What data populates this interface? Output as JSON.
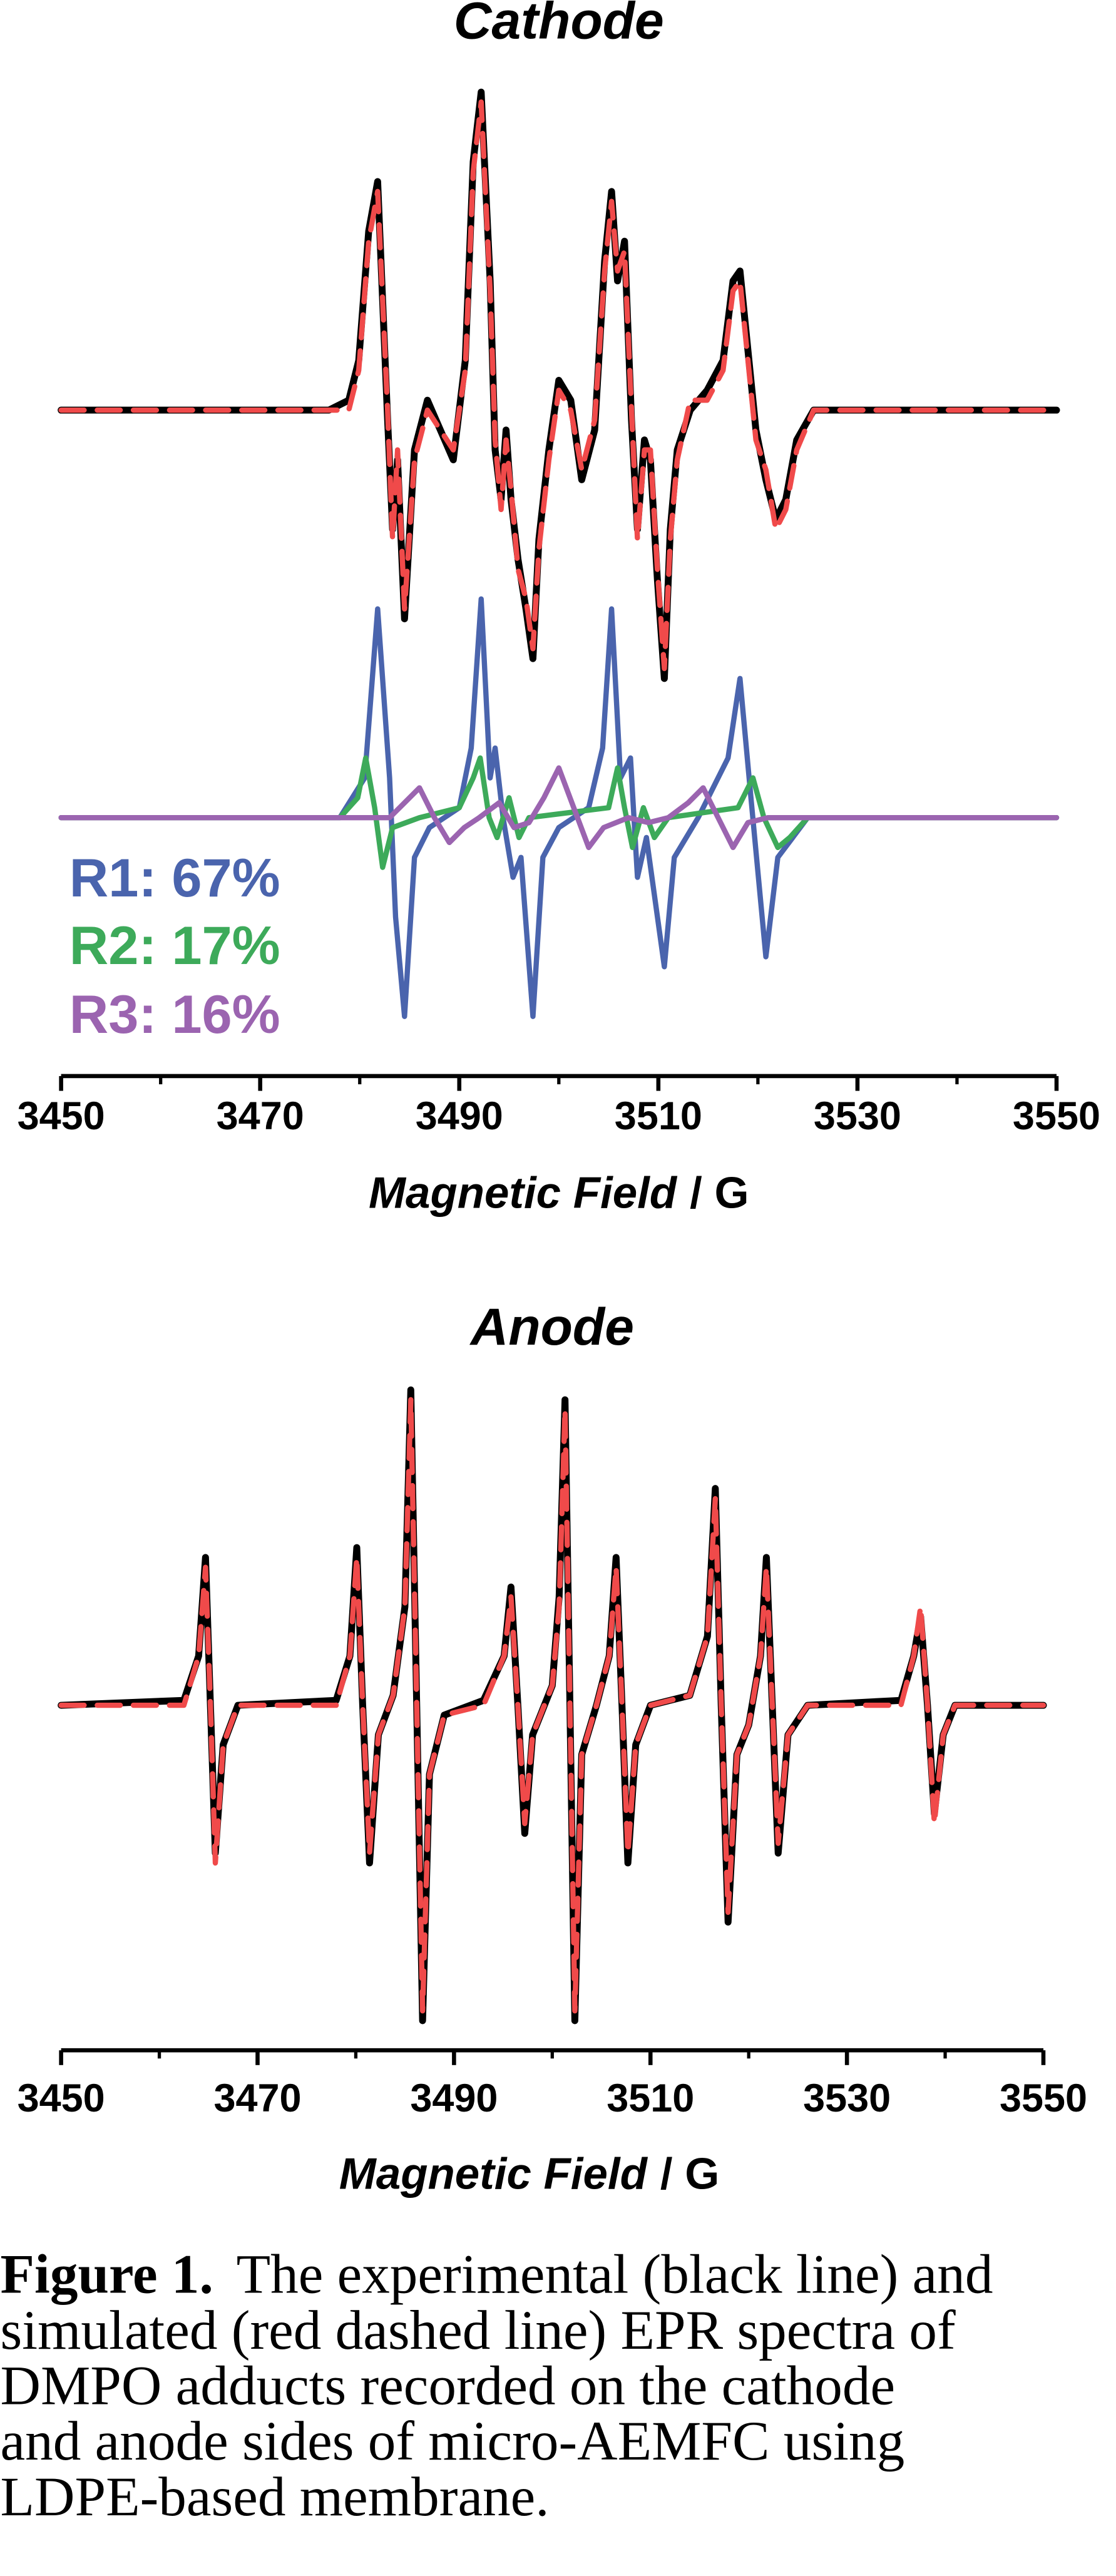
{
  "chart_data": [
    {
      "type": "line",
      "title": "Cathode",
      "xlim": [
        3450,
        3550
      ],
      "xticks": [
        3450,
        3470,
        3490,
        3510,
        3530,
        3550
      ],
      "xminorticks": [
        3460,
        3480,
        3500,
        3520,
        3540
      ],
      "xlabel": {
        "quantity": "Magnetic Field",
        "unit": "/ G"
      },
      "ylim": [
        0,
        100
      ],
      "series": [
        {
          "color": "#000000",
          "dashed": false,
          "x": [
            3450,
            3476.9,
            3478.9,
            3479.9,
            3480.9,
            3481.8,
            3482.8,
            3483.3,
            3483.8,
            3484.5,
            3485.5,
            3486.8,
            3488.1,
            3489.4,
            3490.6,
            3491.4,
            3492.2,
            3493.1,
            3493.6,
            3494.2,
            3494.7,
            3495.2,
            3495.9,
            3496.7,
            3497.4,
            3498.0,
            3499.0,
            3500.0,
            3501.2,
            3502.3,
            3503.6,
            3504.6,
            3505.3,
            3505.9,
            3506.6,
            3507.3,
            3507.9,
            3508.6,
            3509.2,
            3509.9,
            3510.6,
            3511.2,
            3511.9,
            3513.2,
            3514.9,
            3516.5,
            3517.5,
            3518.2,
            3519.0,
            3519.8,
            3520.8,
            3521.8,
            3522.8,
            3523.9,
            3525.6,
            3550
          ],
          "values": [
            67,
            67,
            68,
            72,
            85,
            90,
            66,
            55,
            62,
            46,
            63,
            68,
            65,
            62,
            72,
            92,
            99,
            80,
            63,
            58,
            65,
            58,
            52,
            47,
            42,
            54,
            63,
            70,
            68,
            60,
            65,
            82,
            89,
            80,
            84,
            66,
            55,
            64,
            62,
            50,
            40,
            55,
            63,
            67,
            69,
            72,
            80,
            81,
            73,
            65,
            60,
            56,
            58,
            64,
            67,
            67
          ]
        },
        {
          "color": "#f04a4a",
          "dashed": true,
          "x": [
            3450,
            3476.9,
            3478.9,
            3479.9,
            3480.9,
            3481.8,
            3482.8,
            3483.3,
            3483.8,
            3484.5,
            3485.5,
            3486.8,
            3488.1,
            3489.4,
            3490.6,
            3491.4,
            3492.2,
            3493.1,
            3493.6,
            3494.2,
            3494.7,
            3495.2,
            3495.9,
            3496.7,
            3497.4,
            3498.0,
            3499.0,
            3500.0,
            3501.2,
            3502.3,
            3503.6,
            3504.6,
            3505.3,
            3505.9,
            3506.6,
            3507.3,
            3507.9,
            3508.6,
            3509.2,
            3509.9,
            3510.6,
            3511.2,
            3511.9,
            3513.2,
            3514.9,
            3516.5,
            3517.5,
            3518.2,
            3519.0,
            3519.8,
            3520.8,
            3521.8,
            3522.8,
            3523.9,
            3525.6,
            3550
          ],
          "values": [
            67,
            67,
            67,
            71,
            84,
            89,
            67,
            54,
            63,
            47,
            62,
            67,
            65,
            63,
            71,
            91,
            98,
            79,
            64,
            57,
            64,
            59,
            51,
            48,
            43,
            53,
            62,
            69,
            67,
            61,
            66,
            81,
            88,
            81,
            83,
            67,
            54,
            63,
            63,
            51,
            41,
            54,
            62,
            68,
            68,
            71,
            79,
            80,
            72,
            64,
            61,
            55,
            57,
            63,
            67,
            67
          ]
        },
        {
          "name": "R1: 67%",
          "color": "#4a64ad",
          "dashed": false,
          "x": [
            3450,
            3478,
            3480.5,
            3481.8,
            3483,
            3483.6,
            3484.5,
            3485.5,
            3487,
            3490,
            3491.2,
            3492.2,
            3493.1,
            3493.6,
            3494.4,
            3495.4,
            3496.2,
            3497.4,
            3498.4,
            3500,
            3503,
            3504.4,
            3505.3,
            3506.2,
            3507.2,
            3507.9,
            3508.8,
            3510.6,
            3511.6,
            3514,
            3517,
            3518.2,
            3519.3,
            3520.8,
            3522,
            3525,
            3550
          ],
          "values": [
            26,
            26,
            30,
            47,
            30,
            16,
            6,
            22,
            25,
            27,
            33,
            48,
            30,
            33,
            26,
            20,
            22,
            6,
            22,
            25,
            27,
            33,
            47,
            30,
            32,
            20,
            24,
            11,
            22,
            26,
            32,
            40,
            28,
            12,
            22,
            26,
            26
          ]
        },
        {
          "name": "R2: 17%",
          "color": "#3daa5a",
          "dashed": false,
          "x": [
            3450,
            3478,
            3479.8,
            3480.6,
            3481.5,
            3482.3,
            3483.3,
            3486,
            3490,
            3491.4,
            3492.1,
            3493,
            3493.8,
            3495,
            3496,
            3497,
            3505,
            3505.9,
            3506.6,
            3507.4,
            3508.5,
            3509.6,
            3511,
            3518,
            3519.5,
            3520.6,
            3522,
            3523.2,
            3525,
            3550
          ],
          "values": [
            26,
            26,
            28,
            32,
            27,
            21,
            25,
            26,
            27,
            30,
            32,
            26,
            24,
            28,
            24,
            26,
            27,
            31,
            27,
            23,
            27,
            24,
            26,
            27,
            30,
            26,
            23,
            24,
            26,
            26
          ]
        },
        {
          "name": "R3: 16%",
          "color": "#9b64b0",
          "dashed": false,
          "x": [
            3450,
            3483,
            3484.5,
            3486,
            3487.5,
            3489,
            3490.5,
            3492,
            3494,
            3495.5,
            3497,
            3498.5,
            3500,
            3501.5,
            3503,
            3504.5,
            3507,
            3509,
            3511,
            3513,
            3514.5,
            3516,
            3517.5,
            3519,
            3521,
            3550
          ],
          "values": [
            26,
            26,
            27.5,
            29,
            26,
            23.5,
            25,
            26,
            27.5,
            25,
            25.5,
            28,
            31,
            27,
            23,
            25,
            26,
            25.5,
            26,
            27.5,
            29,
            26,
            23,
            25.5,
            26,
            26
          ]
        }
      ]
    },
    {
      "type": "line",
      "title": "Anode",
      "xlim": [
        3450,
        3550
      ],
      "xticks": [
        3450,
        3470,
        3490,
        3510,
        3530,
        3550
      ],
      "xminorticks": [
        3460,
        3480,
        3500,
        3520,
        3540
      ],
      "xlabel": {
        "quantity": "Magnetic Field",
        "unit": "/ G"
      },
      "ylim": [
        0,
        70
      ],
      "series": [
        {
          "color": "#000000",
          "dashed": false,
          "x": [
            3450,
            3462.5,
            3464.0,
            3464.7,
            3465.2,
            3465.7,
            3466.5,
            3468,
            3478,
            3479.4,
            3480.1,
            3480.7,
            3481.4,
            3482.3,
            3483.8,
            3485,
            3485.6,
            3486.2,
            3486.8,
            3487.5,
            3489,
            3493,
            3495.1,
            3495.8,
            3496.5,
            3497.2,
            3498,
            3500,
            3500.7,
            3501.3,
            3501.8,
            3502.3,
            3503,
            3504.5,
            3505.8,
            3506.5,
            3507.1,
            3507.7,
            3508.5,
            3510,
            3514,
            3515.8,
            3516.6,
            3517.2,
            3517.9,
            3518.8,
            3520,
            3521.2,
            3521.8,
            3522.4,
            3523,
            3524,
            3526,
            3535.5,
            3536.8,
            3537.5,
            3538.2,
            3538.9,
            3539.8,
            3541,
            3550
          ],
          "values": [
            35,
            35.5,
            40,
            50,
            35,
            20,
            31,
            35,
            35.5,
            40,
            51,
            35,
            19,
            32,
            36,
            45,
            67,
            35,
            3,
            28,
            34,
            35.5,
            40,
            47,
            35,
            22,
            32,
            37,
            46,
            66,
            35,
            3,
            30,
            35,
            40,
            50,
            35,
            19,
            31,
            35,
            36,
            42,
            57,
            35,
            13,
            30,
            33,
            40,
            50,
            35,
            20,
            32,
            35,
            35.5,
            40,
            44,
            35,
            24,
            32,
            35,
            35
          ]
        },
        {
          "color": "#f04a4a",
          "dashed": true,
          "x": [
            3450,
            3462.5,
            3464.0,
            3464.7,
            3465.2,
            3465.7,
            3466.5,
            3468,
            3478,
            3479.4,
            3480.1,
            3480.7,
            3481.4,
            3482.3,
            3483.8,
            3485,
            3485.6,
            3486.2,
            3486.8,
            3487.5,
            3489,
            3493,
            3495.1,
            3495.8,
            3496.5,
            3497.2,
            3498,
            3500,
            3500.7,
            3501.3,
            3501.8,
            3502.3,
            3503,
            3504.5,
            3505.8,
            3506.5,
            3507.1,
            3507.7,
            3508.5,
            3510,
            3514,
            3515.8,
            3516.6,
            3517.2,
            3517.9,
            3518.8,
            3520,
            3521.2,
            3521.8,
            3522.4,
            3523,
            3524,
            3526,
            3535.5,
            3536.8,
            3537.5,
            3538.2,
            3538.9,
            3539.8,
            3541,
            3550
          ],
          "values": [
            35,
            35,
            40,
            49,
            35,
            19,
            31,
            35,
            35,
            40,
            50,
            35,
            20,
            32,
            36,
            45,
            66,
            35,
            4,
            28,
            34,
            35,
            40,
            46,
            35,
            23,
            32,
            37,
            45,
            65,
            35,
            4,
            30,
            35,
            40,
            49,
            35,
            20,
            31,
            35,
            36,
            42,
            56,
            35,
            14,
            30,
            33,
            40,
            49,
            35,
            21,
            32,
            35,
            35,
            40,
            45,
            35,
            23,
            32,
            35,
            35
          ]
        }
      ]
    }
  ],
  "caption": {
    "label": "Figure 1.",
    "lines": [
      "The experimental (black line) and",
      "simulated (red dashed line) EPR spectra of",
      "DMPO adducts recorded on the cathode",
      "and anode sides of micro-AEMFC using",
      "LDPE-based membrane."
    ]
  }
}
